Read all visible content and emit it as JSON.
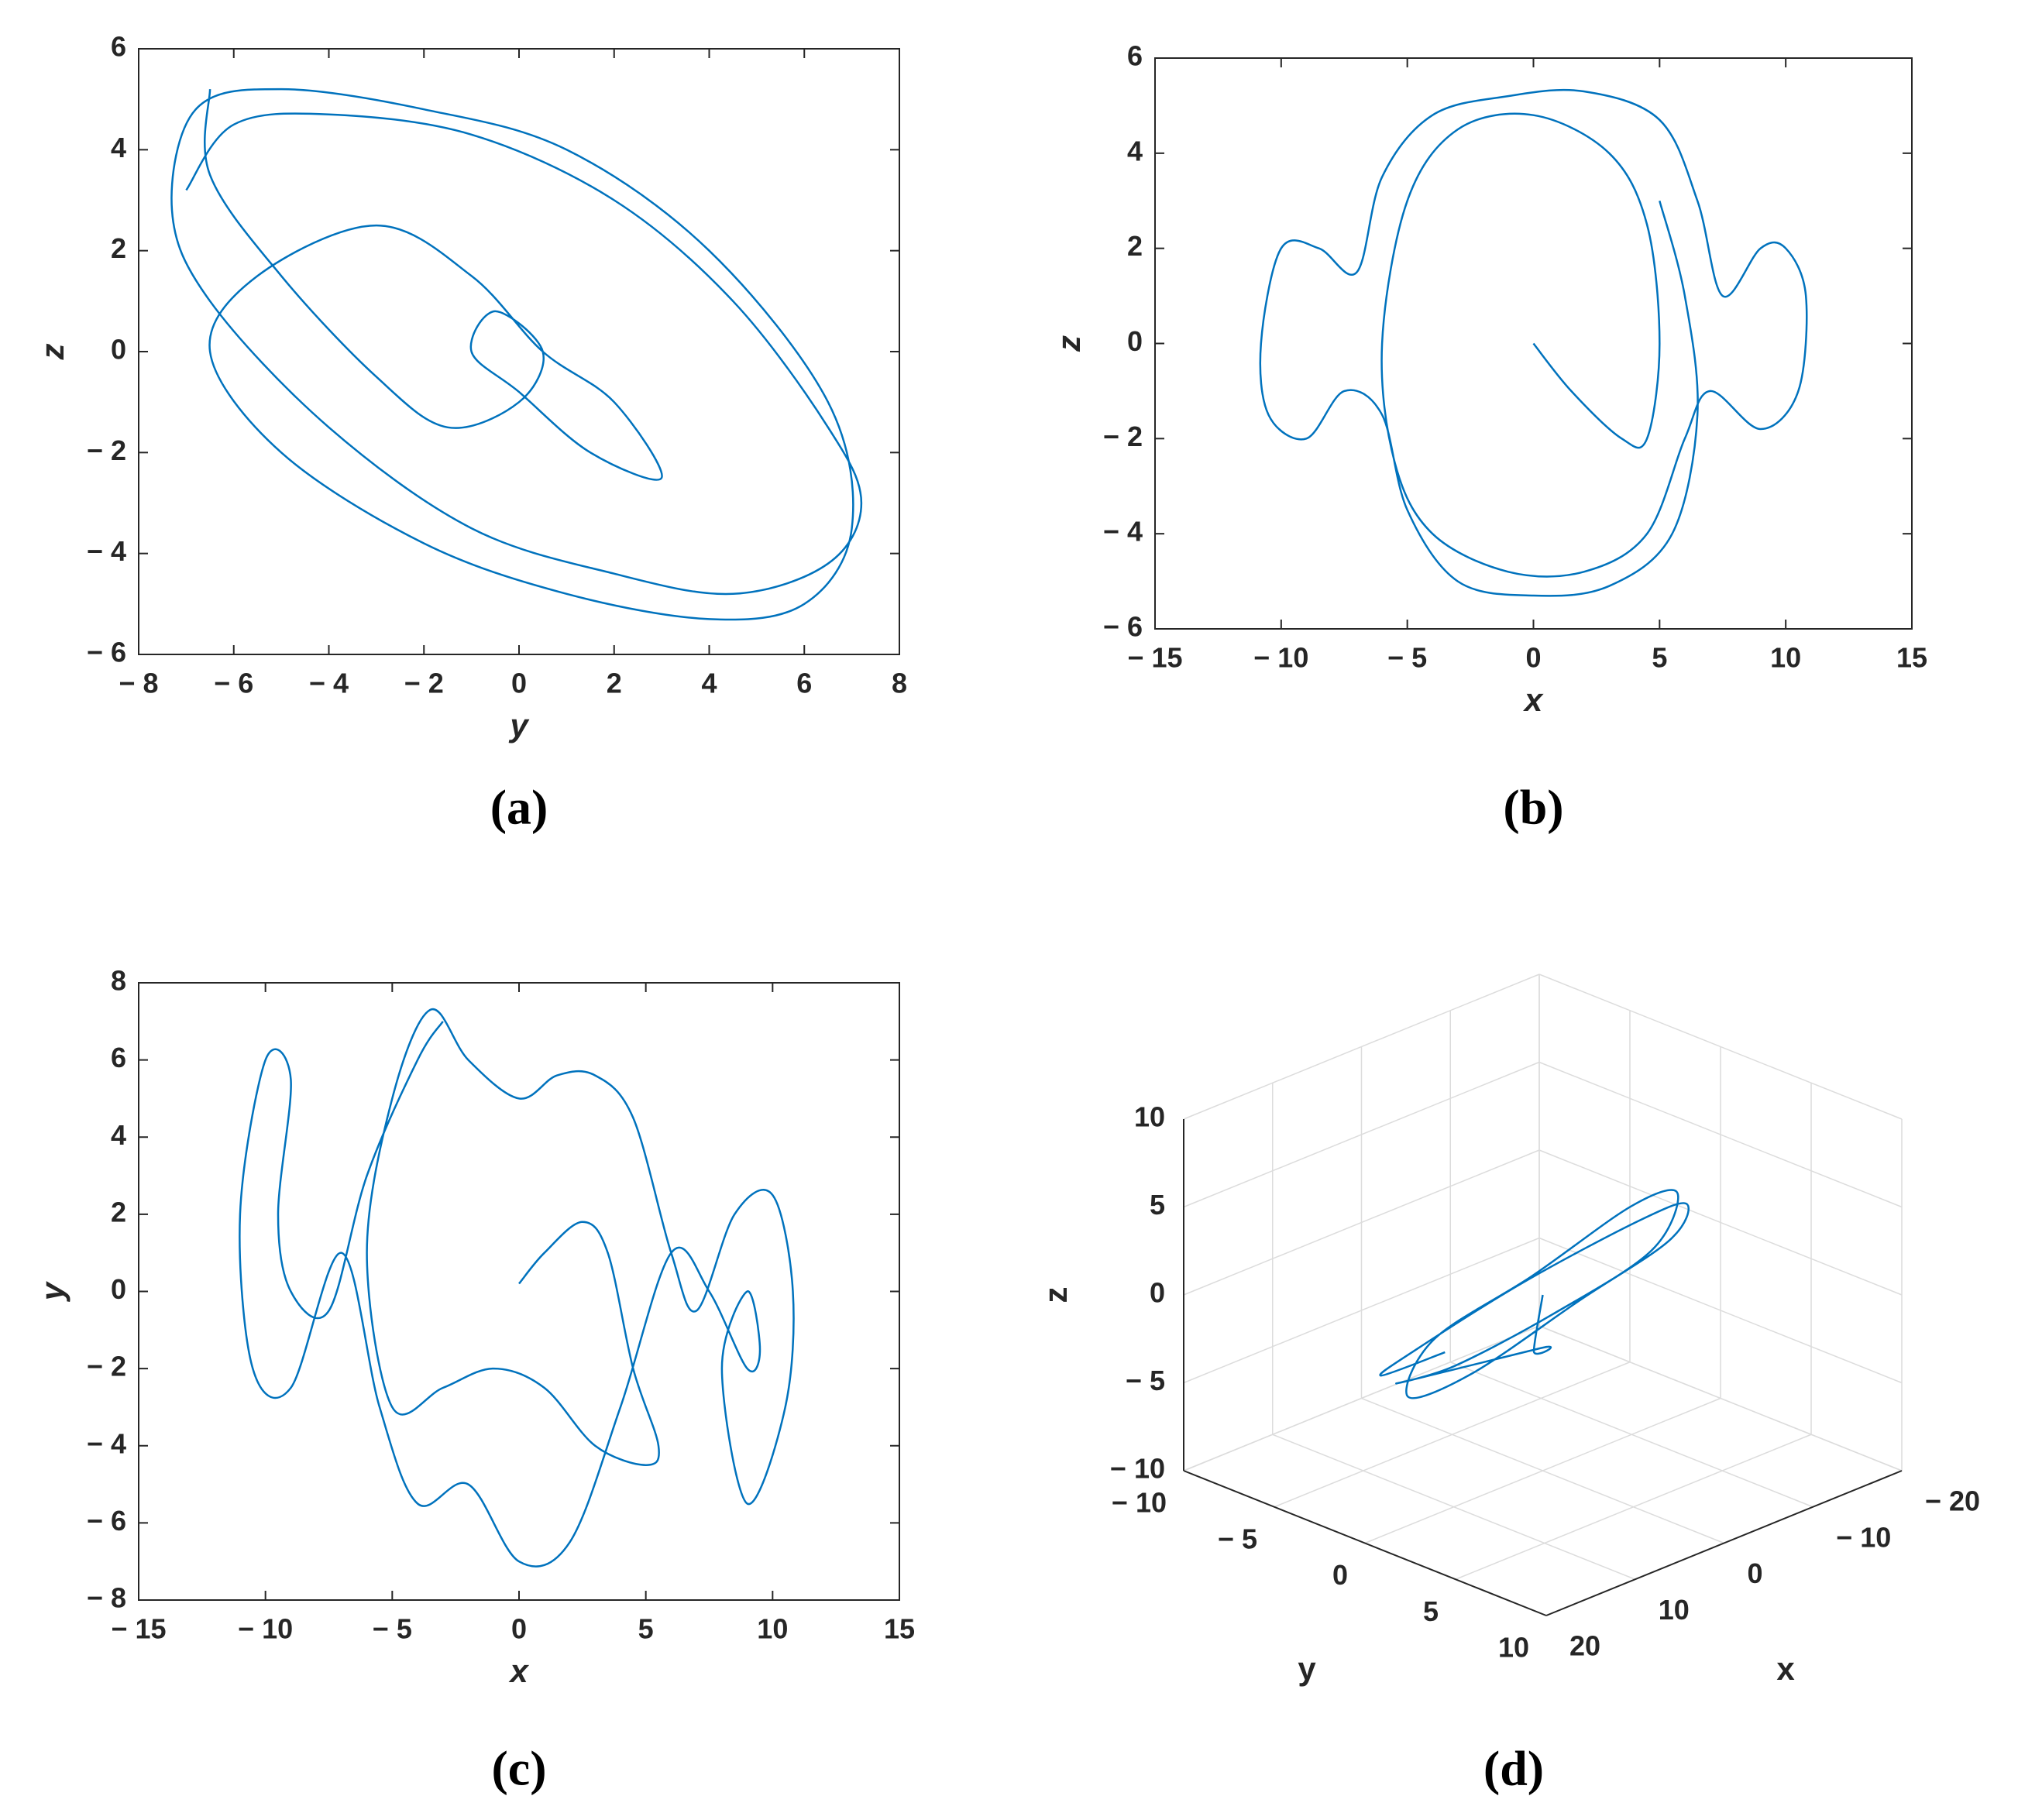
{
  "chart_data": [
    {
      "type": "line",
      "caption": "(a)",
      "xlabel": "y",
      "ylabel": "z",
      "xlim": [
        -8,
        8
      ],
      "ylim": [
        -6,
        6
      ],
      "xticks": [
        {
          "value": -8,
          "label": "− 8"
        },
        {
          "value": -6,
          "label": "− 6"
        },
        {
          "value": -4,
          "label": "− 4"
        },
        {
          "value": -2,
          "label": "− 2"
        },
        0,
        2,
        4,
        6,
        8
      ],
      "yticks": [
        {
          "value": -6,
          "label": "− 6"
        },
        {
          "value": -4,
          "label": "− 4"
        },
        {
          "value": -2,
          "label": "− 2"
        },
        0,
        2,
        4,
        6
      ],
      "series": [
        {
          "color": "#0072bd",
          "x": [
            -7,
            -6,
            -4,
            -1,
            2,
            4.5,
            6.5,
            7.2,
            6.5,
            4.5,
            2,
            -1,
            -4,
            -6.5,
            -7.3,
            -6.8,
            -5,
            -2,
            1,
            4,
            6.5,
            7,
            6,
            4,
            1,
            -2,
            -5,
            -6.5,
            -5.5,
            -3,
            -1,
            0.5,
            2,
            3,
            1.5,
            0,
            -1,
            -0.5,
            0.5,
            0,
            -1.5,
            -3,
            -5,
            -6.5,
            -6.5
          ],
          "values": [
            3.2,
            4.5,
            4.7,
            4.3,
            3,
            1,
            -1.5,
            -3,
            -4.2,
            -4.8,
            -4.4,
            -3.5,
            -1.5,
            1,
            2.8,
            4.8,
            5.2,
            4.8,
            4,
            2,
            -1,
            -3.5,
            -5,
            -5.3,
            -4.8,
            -3.8,
            -2,
            0,
            1.5,
            2.5,
            1.5,
            0,
            -1,
            -2.5,
            -2,
            -0.8,
            0,
            0.8,
            0,
            -1,
            -1.5,
            -0.5,
            1.5,
            3.5,
            5.2
          ]
        }
      ]
    },
    {
      "type": "line",
      "caption": "(b)",
      "xlabel": "x",
      "ylabel": "z",
      "xlim": [
        -15,
        15
      ],
      "ylim": [
        -6,
        6
      ],
      "xticks": [
        {
          "value": -15,
          "label": "− 15"
        },
        {
          "value": -10,
          "label": "− 10"
        },
        {
          "value": -5,
          "label": "− 5"
        },
        0,
        5,
        10,
        15
      ],
      "yticks": [
        {
          "value": -6,
          "label": "− 6"
        },
        {
          "value": -4,
          "label": "− 4"
        },
        {
          "value": -2,
          "label": "− 2"
        },
        0,
        2,
        4,
        6
      ],
      "series": [
        {
          "color": "#0072bd",
          "x": [
            0,
            1.5,
            3.5,
            4.5,
            5,
            4.5,
            3,
            0,
            -3,
            -5,
            -6,
            -5.5,
            -4,
            -1,
            2,
            4.5,
            6,
            7,
            9,
            10.5,
            10.8,
            10,
            9,
            7.5,
            6.5,
            5,
            2,
            -1,
            -4,
            -6,
            -7,
            -8.5,
            -10,
            -10.8,
            -10.5,
            -9,
            -7.5,
            -6,
            -5,
            -3,
            0,
            3,
            5.5,
            6.5,
            6,
            5
          ],
          "values": [
            0,
            -1,
            -2,
            -2,
            0,
            2.5,
            4,
            4.8,
            4.5,
            3,
            0,
            -2.5,
            -4,
            -4.8,
            -4.8,
            -4,
            -2,
            -1,
            -1.8,
            -1,
            1,
            2,
            2,
            1,
            3,
            4.7,
            5.3,
            5.2,
            4.8,
            3.5,
            1.5,
            2,
            2,
            0,
            -1.5,
            -2,
            -1,
            -1.5,
            -3.5,
            -5,
            -5.3,
            -5.1,
            -4,
            -1.5,
            1,
            3
          ]
        }
      ]
    },
    {
      "type": "line",
      "caption": "(c)",
      "xlabel": "x",
      "ylabel": "y",
      "xlim": [
        -15,
        15
      ],
      "ylim": [
        -8,
        8
      ],
      "xticks": [
        {
          "value": -15,
          "label": "− 15"
        },
        {
          "value": -10,
          "label": "− 10"
        },
        {
          "value": -5,
          "label": "− 5"
        },
        0,
        5,
        10,
        15
      ],
      "yticks": [
        {
          "value": -8,
          "label": "− 8"
        },
        {
          "value": -6,
          "label": "− 6"
        },
        {
          "value": -4,
          "label": "− 4"
        },
        {
          "value": -2,
          "label": "− 2"
        },
        0,
        2,
        4,
        6,
        8
      ],
      "series": [
        {
          "color": "#0072bd",
          "x": [
            0,
            1,
            2.5,
            3.5,
            4.5,
            5.5,
            5,
            3,
            1,
            -1,
            -3,
            -5,
            -6,
            -5,
            -3.5,
            -2,
            0,
            1.5,
            3,
            4.5,
            6,
            7,
            8.5,
            10,
            10.8,
            10.5,
            9,
            8,
            9,
            9.5,
            9,
            7.5,
            6,
            4,
            2,
            0,
            -2,
            -4,
            -5.5,
            -7,
            -9,
            -10.5,
            -11,
            -10,
            -9,
            -9.5,
            -9,
            -7.5,
            -6,
            -4,
            -3
          ],
          "values": [
            0.2,
            1,
            1.8,
            1,
            -2,
            -4,
            -4.5,
            -4,
            -2.5,
            -2,
            -2.5,
            -3,
            1,
            5,
            7.3,
            6,
            5,
            5.6,
            5.6,
            4.5,
            1,
            -0.5,
            2,
            2.5,
            0,
            -3,
            -5.5,
            -2,
            0,
            -1.5,
            -2,
            0,
            1,
            -3,
            -6.5,
            -7,
            -5,
            -5.5,
            -3,
            1,
            -2.5,
            -2,
            2,
            6,
            5.5,
            2,
            0,
            -0.5,
            3,
            6,
            7
          ]
        }
      ]
    },
    {
      "type": "line3d",
      "caption": "(d)",
      "xlabel": "x",
      "ylabel": "y",
      "zlabel": "z",
      "xlim": [
        -20,
        20
      ],
      "ylim": [
        -10,
        10
      ],
      "zlim": [
        -10,
        10
      ],
      "grid": true,
      "xticks": [
        {
          "value": -20,
          "label": "− 20"
        },
        {
          "value": -10,
          "label": "− 10"
        },
        0,
        10,
        20
      ],
      "yticks": [
        {
          "value": -10,
          "label": "− 10"
        },
        {
          "value": -5,
          "label": "− 5"
        },
        0,
        5,
        10
      ],
      "zticks": [
        {
          "value": -10,
          "label": "− 10"
        },
        {
          "value": -5,
          "label": "− 5"
        },
        0,
        5,
        10
      ],
      "series": [
        {
          "color": "#0072bd",
          "x": [
            0,
            1,
            0,
            8,
            10,
            7,
            0,
            -7,
            -10,
            -7,
            0,
            7,
            10,
            6,
            0,
            -6,
            -11,
            -8,
            0,
            8,
            11
          ],
          "y": [
            0,
            0,
            0,
            -4,
            0,
            4,
            6,
            4,
            0,
            -4,
            -6,
            -4,
            1,
            5,
            7,
            5,
            0,
            -5,
            -7,
            -5,
            0
          ],
          "z": [
            0,
            -3,
            -3,
            -5,
            -2,
            2,
            5,
            6,
            3,
            -2,
            -5,
            -6,
            -2,
            3,
            6,
            6,
            2,
            -3,
            -6,
            -5,
            -1
          ]
        }
      ]
    }
  ]
}
